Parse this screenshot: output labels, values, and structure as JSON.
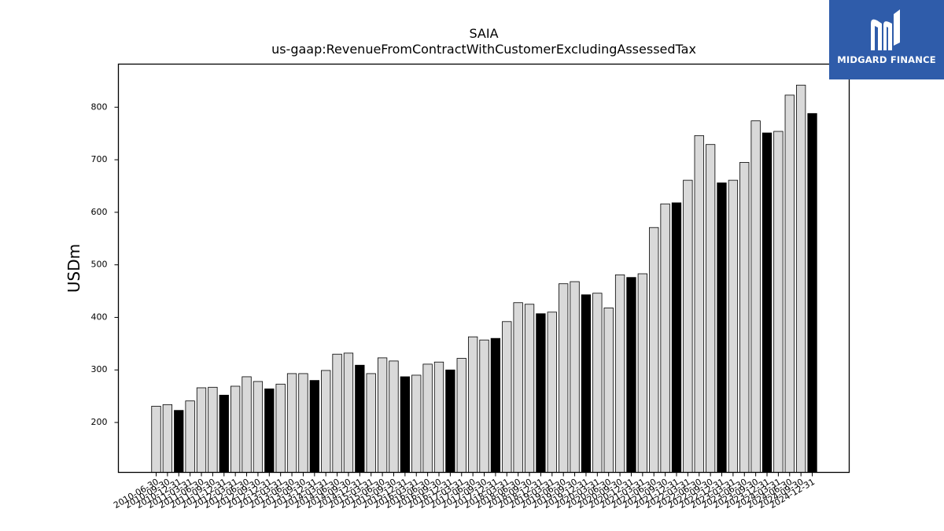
{
  "chart_data": {
    "type": "bar",
    "title": "SAIA",
    "subtitle": "us-gaap:RevenueFromContractWithCustomerExcludingAssessedTax",
    "xlabel": "",
    "ylabel": "USDm",
    "ylim": [
      105,
      882
    ],
    "yticks": [
      200,
      300,
      400,
      500,
      600,
      700,
      800
    ],
    "grid": false,
    "colors": {
      "bar": "#d9d9d9",
      "highlight": "#000000",
      "edge": "#000000"
    },
    "categories": [
      "2010-06-30",
      "2010-09-30",
      "2010-12-31",
      "2011-03-31",
      "2011-06-30",
      "2011-09-30",
      "2011-12-31",
      "2012-03-31",
      "2012-06-30",
      "2012-09-30",
      "2012-12-31",
      "2013-03-31",
      "2013-06-30",
      "2013-09-30",
      "2013-12-31",
      "2014-03-31",
      "2014-06-30",
      "2014-09-30",
      "2014-12-31",
      "2015-03-31",
      "2015-06-30",
      "2015-09-30",
      "2015-12-31",
      "2016-03-31",
      "2016-06-30",
      "2016-09-30",
      "2016-12-31",
      "2017-03-31",
      "2017-06-30",
      "2017-09-30",
      "2017-12-31",
      "2018-03-31",
      "2018-06-30",
      "2018-09-30",
      "2018-12-31",
      "2019-03-31",
      "2019-06-30",
      "2019-09-30",
      "2019-12-31",
      "2020-03-31",
      "2020-06-30",
      "2020-09-30",
      "2020-12-31",
      "2021-03-31",
      "2021-06-30",
      "2021-09-30",
      "2021-12-31",
      "2022-03-31",
      "2022-06-30",
      "2022-09-30",
      "2022-12-31",
      "2023-03-31",
      "2023-06-30",
      "2023-09-30",
      "2023-12-31",
      "2024-03-31",
      "2024-06-30",
      "2024-09-30",
      "2024-12-31"
    ],
    "values": [
      231,
      234,
      223,
      241,
      266,
      267,
      252,
      269,
      287,
      278,
      264,
      273,
      293,
      293,
      280,
      299,
      330,
      332,
      309,
      293,
      323,
      317,
      287,
      290,
      311,
      315,
      300,
      322,
      363,
      357,
      360,
      392,
      428,
      425,
      407,
      410,
      464,
      468,
      443,
      446,
      418,
      481,
      476,
      483,
      571,
      616,
      618,
      661,
      746,
      729,
      656,
      661,
      695,
      774,
      751,
      754,
      823,
      842,
      788
    ],
    "highlighted_bars": [
      "2010-12-31",
      "2011-12-31",
      "2012-12-31",
      "2013-12-31",
      "2014-12-31",
      "2015-12-31",
      "2016-12-31",
      "2017-12-31",
      "2018-12-31",
      "2019-12-31",
      "2020-12-31",
      "2021-12-31",
      "2022-12-31",
      "2023-12-31",
      "2024-12-31"
    ]
  },
  "logo": {
    "text": "MIDGARD FINANCE",
    "icon": "midgard-logo-icon",
    "background": "#2f5caa"
  }
}
